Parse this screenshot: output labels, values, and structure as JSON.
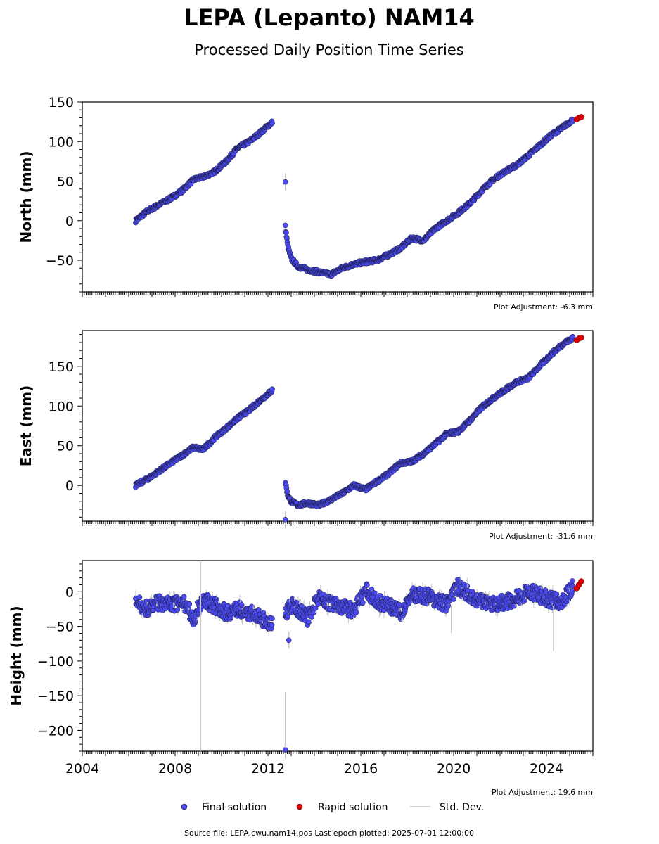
{
  "title": "LEPA (Lepanto) NAM14",
  "subtitle": "Processed Daily Position Time Series",
  "colors": {
    "final": "#4a4af0",
    "final_edge": "#1a1a3a",
    "rapid": "#e00000",
    "stddev": "#c8c8c8"
  },
  "legend": {
    "final": "Final solution",
    "rapid": "Rapid solution",
    "stddev": "Std. Dev.",
    "placement": "bottom-center"
  },
  "footer": "Source file: LEPA.cwu.nam14.pos  Last epoch plotted: 2025-07-01 12:00:00",
  "chart_data": [
    {
      "type": "scatter",
      "ylabel": "North (mm)",
      "adjustment": "Plot Adjustment: -6.3 mm",
      "xlim": [
        2004,
        2026
      ],
      "ylim": [
        -90,
        150
      ],
      "yticks": [
        150,
        100,
        50,
        0,
        -50
      ],
      "ytick_labels": [
        "150",
        "100",
        "50",
        "0",
        "−50"
      ],
      "series": [
        {
          "kind": "final",
          "x": [
            2006.3,
            2006.8,
            2007.3,
            2007.8,
            2008.3,
            2008.8,
            2009.2,
            2009.7,
            2010.2,
            2010.7,
            2011.2,
            2011.7,
            2012.2
          ],
          "y": [
            0,
            12,
            20,
            28,
            38,
            52,
            55,
            62,
            75,
            92,
            100,
            112,
            125
          ]
        },
        {
          "kind": "final",
          "x": [
            2012.75,
            2012.85,
            2013.0,
            2013.3,
            2013.7,
            2014.2,
            2014.7,
            2015.2,
            2015.7,
            2016.2,
            2016.7,
            2017.2,
            2017.7,
            2018.2,
            2018.7,
            2019.2,
            2019.7,
            2020.2,
            2020.7,
            2021.2,
            2021.7,
            2022.2,
            2022.7,
            2023.2,
            2023.7,
            2024.2,
            2024.7,
            2025.15
          ],
          "y": [
            -8,
            -32,
            -48,
            -58,
            -62,
            -65,
            -68,
            -60,
            -55,
            -52,
            -50,
            -43,
            -35,
            -22,
            -25,
            -10,
            0,
            10,
            22,
            38,
            52,
            62,
            70,
            82,
            95,
            108,
            118,
            128
          ]
        },
        {
          "kind": "outlier",
          "x": [
            2012.75
          ],
          "y": [
            49
          ]
        },
        {
          "kind": "rapid",
          "x": [
            2025.3,
            2025.4,
            2025.5
          ],
          "y": [
            128,
            130,
            131
          ]
        }
      ]
    },
    {
      "type": "scatter",
      "ylabel": "East (mm)",
      "adjustment": "Plot Adjustment: -31.6 mm",
      "xlim": [
        2004,
        2026
      ],
      "ylim": [
        -45,
        195
      ],
      "yticks": [
        150,
        100,
        50,
        0
      ],
      "ytick_labels": [
        "150",
        "100",
        "50",
        "0"
      ],
      "series": [
        {
          "kind": "final",
          "x": [
            2006.3,
            2006.8,
            2007.3,
            2007.8,
            2008.3,
            2008.8,
            2009.2,
            2009.7,
            2010.2,
            2010.7,
            2011.2,
            2011.7,
            2012.2
          ],
          "y": [
            0,
            8,
            18,
            28,
            38,
            48,
            45,
            60,
            72,
            85,
            95,
            108,
            120
          ]
        },
        {
          "kind": "final",
          "x": [
            2012.75,
            2012.85,
            2013.0,
            2013.3,
            2013.7,
            2014.2,
            2014.7,
            2015.2,
            2015.7,
            2016.2,
            2016.7,
            2017.2,
            2017.7,
            2018.2,
            2018.7,
            2019.2,
            2019.7,
            2020.2,
            2020.7,
            2021.2,
            2021.7,
            2022.2,
            2022.7,
            2023.2,
            2023.7,
            2024.2,
            2024.7,
            2025.15
          ],
          "y": [
            5,
            -12,
            -20,
            -25,
            -22,
            -25,
            -18,
            -10,
            0,
            -5,
            5,
            15,
            28,
            30,
            40,
            52,
            65,
            68,
            82,
            98,
            110,
            120,
            130,
            135,
            150,
            165,
            178,
            186
          ]
        },
        {
          "kind": "outlier",
          "x": [
            2012.75
          ],
          "y": [
            -43
          ]
        },
        {
          "kind": "rapid",
          "x": [
            2025.3,
            2025.4,
            2025.5
          ],
          "y": [
            183,
            185,
            186
          ]
        }
      ]
    },
    {
      "type": "scatter",
      "ylabel": "Height (mm)",
      "adjustment": "Plot Adjustment: 19.6 mm",
      "xlim": [
        2004,
        2026
      ],
      "ylim": [
        -230,
        45
      ],
      "yticks": [
        0,
        -50,
        -100,
        -150,
        -200
      ],
      "ytick_labels": [
        "0",
        "−50",
        "−100",
        "−150",
        "−200"
      ],
      "xticks": [
        2004,
        2008,
        2012,
        2016,
        2020,
        2024
      ],
      "series": [
        {
          "kind": "final",
          "x": [
            2006.3,
            2006.8,
            2007.3,
            2007.8,
            2008.3,
            2008.8,
            2009.2,
            2009.7,
            2010.2,
            2010.7,
            2011.2,
            2011.7,
            2012.2
          ],
          "y": [
            -15,
            -25,
            -15,
            -20,
            -12,
            -38,
            -10,
            -20,
            -30,
            -25,
            -30,
            -38,
            -48
          ]
        },
        {
          "kind": "final",
          "x": [
            2012.75,
            2013.0,
            2013.3,
            2013.7,
            2014.2,
            2014.7,
            2015.2,
            2015.7,
            2016.2,
            2016.7,
            2017.2,
            2017.7,
            2018.2,
            2018.7,
            2019.2,
            2019.7,
            2020.2,
            2020.7,
            2021.2,
            2021.7,
            2022.2,
            2022.7,
            2023.2,
            2023.7,
            2024.2,
            2024.7,
            2025.15
          ],
          "y": [
            -30,
            -20,
            -25,
            -38,
            -5,
            -18,
            -20,
            -28,
            2,
            -15,
            -20,
            -30,
            -5,
            -5,
            -10,
            -18,
            8,
            -5,
            -12,
            -18,
            -15,
            -10,
            0,
            -5,
            -12,
            -15,
            10
          ]
        },
        {
          "kind": "outlier",
          "x": [
            2012.9,
            2012.75
          ],
          "y": [
            -70,
            -228
          ]
        },
        {
          "kind": "rapid",
          "x": [
            2025.3,
            2025.4,
            2025.5
          ],
          "y": [
            5,
            10,
            15
          ]
        }
      ]
    }
  ]
}
